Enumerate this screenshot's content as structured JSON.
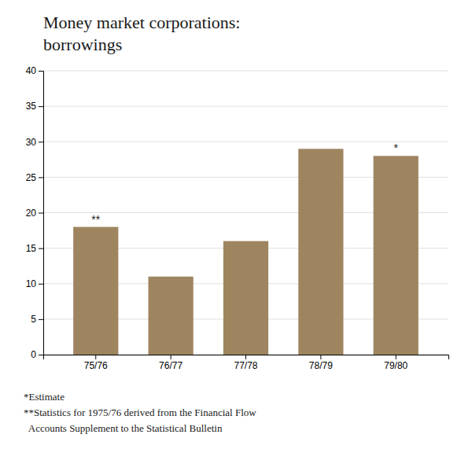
{
  "chart_data": {
    "type": "bar",
    "title": "Money market corporations:",
    "subtitle": "borrowings",
    "categories": [
      "75/76",
      "76/77",
      "77/78",
      "78/79",
      "79/80"
    ],
    "values": [
      18.0,
      11.0,
      16.0,
      29.0,
      28.0
    ],
    "color": "#9e8560",
    "ylim": [
      0,
      40
    ],
    "yticks": [
      0,
      5,
      10,
      15,
      20,
      25,
      30,
      35,
      40
    ],
    "grid": true,
    "annotations": [
      {
        "text": "**",
        "category": "75/76"
      },
      {
        "text": "*",
        "category": "79/80"
      }
    ],
    "footnotes": [
      "*Estimate",
      "**Statistics for 1975/76 derived from the Financial Flow",
      "  Accounts Supplement to the Statistical Bulletin"
    ]
  }
}
